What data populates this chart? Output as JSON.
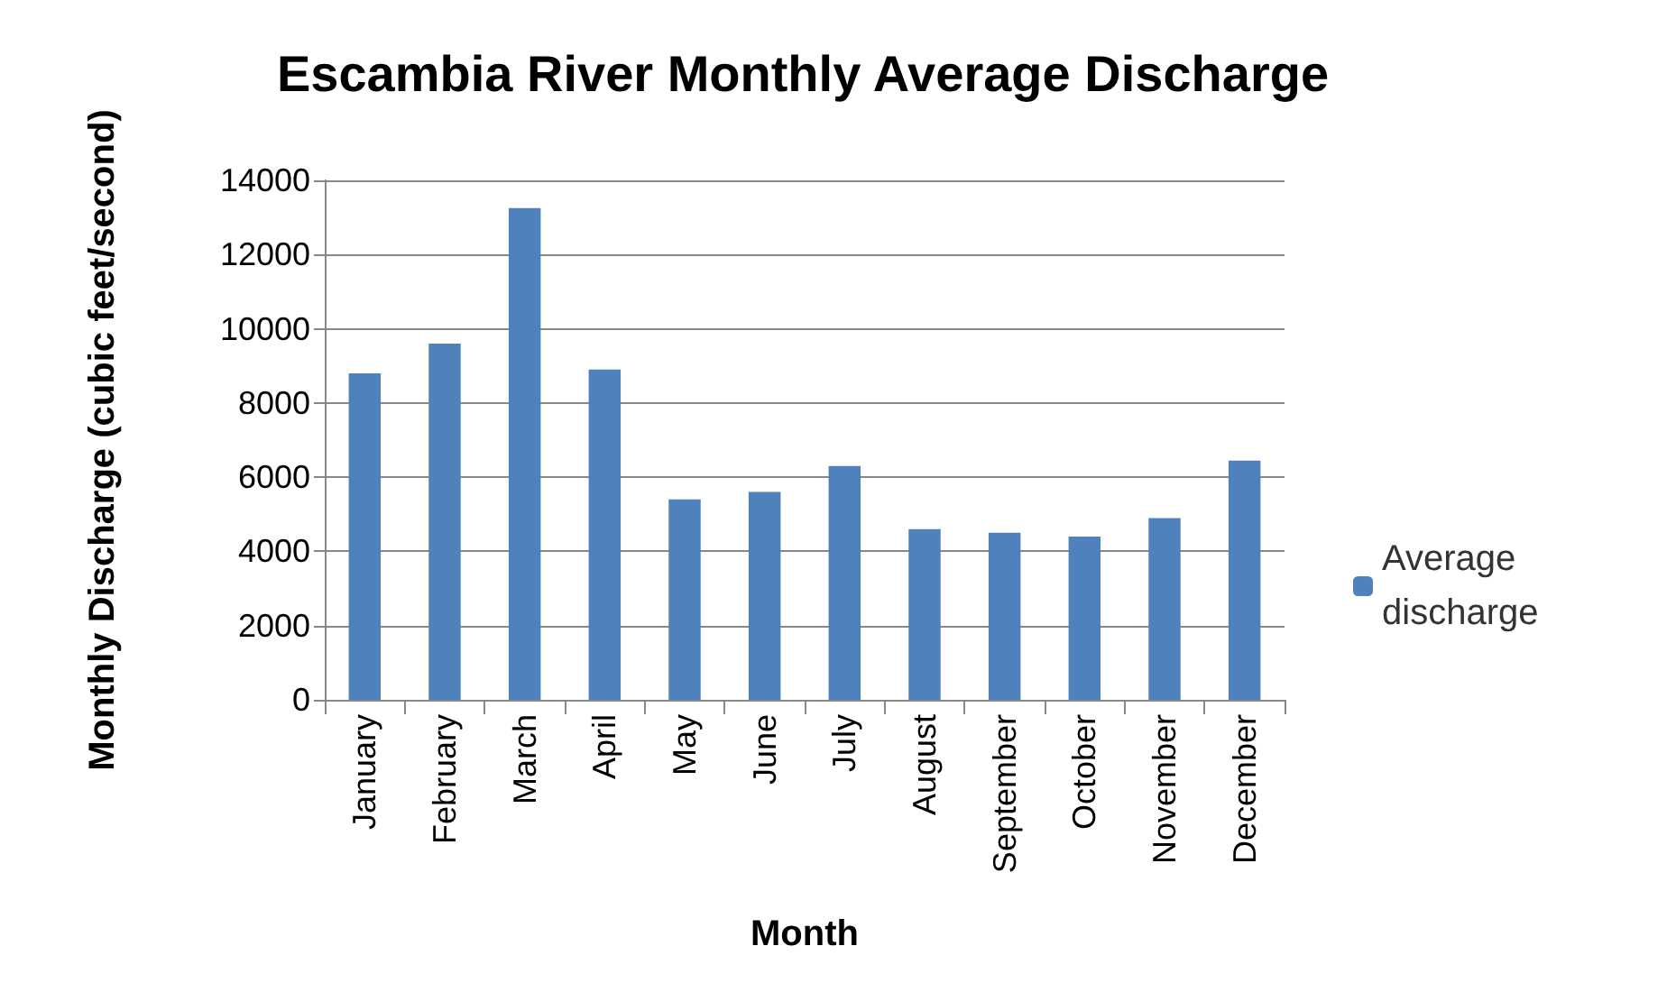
{
  "chart_data": {
    "type": "bar",
    "title": "Escambia River Monthly Average Discharge",
    "xlabel": "Month",
    "ylabel": "Monthly Discharge (cubic feet/second)",
    "categories": [
      "January",
      "February",
      "March",
      "April",
      "May",
      "June",
      "July",
      "August",
      "September",
      "October",
      "November",
      "December"
    ],
    "series": [
      {
        "name": "Average discharge",
        "color": "#4f81bd",
        "values": [
          8800,
          9600,
          13250,
          8900,
          5400,
          5600,
          6300,
          4600,
          4500,
          4400,
          4900,
          6450
        ]
      }
    ],
    "ylim": [
      0,
      14000
    ],
    "yticks": [
      0,
      2000,
      4000,
      6000,
      8000,
      10000,
      12000,
      14000
    ],
    "grid": "y",
    "legend": "right"
  }
}
